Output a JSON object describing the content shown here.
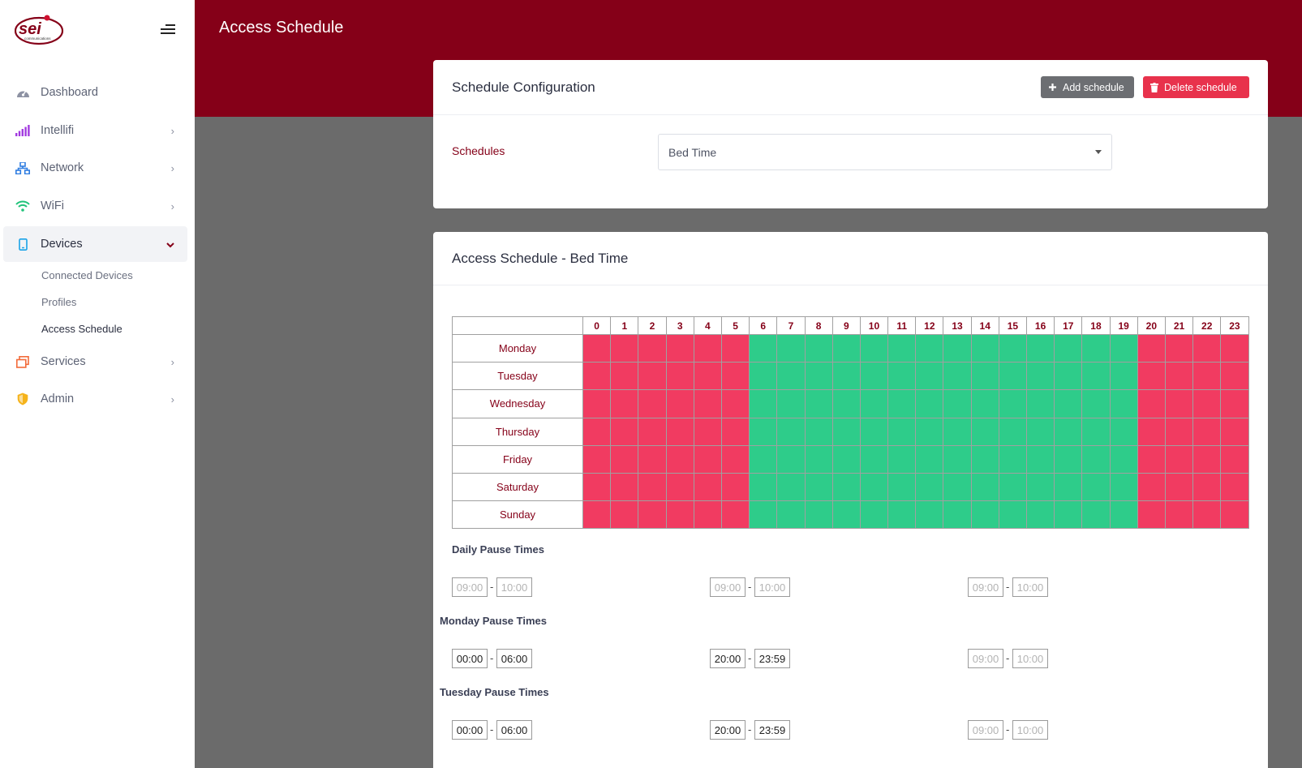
{
  "brand": {
    "logo_icon": "sei-communications-logo",
    "accent": "#850018"
  },
  "sidebar": {
    "items": [
      {
        "label": "Dashboard",
        "icon": "dashboard-gauge-icon"
      },
      {
        "label": "Intellifi",
        "icon": "signal-bars-icon"
      },
      {
        "label": "Network",
        "icon": "network-icon"
      },
      {
        "label": "WiFi",
        "icon": "wifi-icon"
      },
      {
        "label": "Devices",
        "icon": "mobile-device-icon"
      },
      {
        "label": "Services",
        "icon": "services-windows-icon"
      },
      {
        "label": "Admin",
        "icon": "shield-icon"
      }
    ],
    "devices_sub": [
      "Connected Devices",
      "Profiles",
      "Access Schedule"
    ]
  },
  "page": {
    "title": "Access Schedule"
  },
  "config": {
    "title": "Schedule Configuration",
    "add_label": "Add schedule",
    "delete_label": "Delete schedule",
    "schedules_label": "Schedules",
    "selected_schedule": "Bed Time"
  },
  "schedule": {
    "title": "Access Schedule - Bed Time",
    "hours": [
      "0",
      "1",
      "2",
      "3",
      "4",
      "5",
      "6",
      "7",
      "8",
      "9",
      "10",
      "11",
      "12",
      "13",
      "14",
      "15",
      "16",
      "17",
      "18",
      "19",
      "20",
      "21",
      "22",
      "23"
    ],
    "days": [
      "Monday",
      "Tuesday",
      "Wednesday",
      "Thursday",
      "Friday",
      "Saturday",
      "Sunday"
    ],
    "allowed_hours": [
      6,
      7,
      8,
      9,
      10,
      11,
      12,
      13,
      14,
      15,
      16,
      17,
      18,
      19
    ],
    "colors": {
      "blocked": "#f13b61",
      "allowed": "#2ecc8a"
    }
  },
  "pause_times": {
    "daily": {
      "label": "Daily Pause Times",
      "ranges": [
        {
          "start": "",
          "end": "",
          "start_ph": "09:00",
          "end_ph": "10:00"
        },
        {
          "start": "",
          "end": "",
          "start_ph": "09:00",
          "end_ph": "10:00"
        },
        {
          "start": "",
          "end": "",
          "start_ph": "09:00",
          "end_ph": "10:00"
        }
      ]
    },
    "monday": {
      "label": "Monday Pause Times",
      "ranges": [
        {
          "start": "00:00",
          "end": "06:00"
        },
        {
          "start": "20:00",
          "end": "23:59"
        },
        {
          "start": "",
          "end": "",
          "start_ph": "09:00",
          "end_ph": "10:00"
        }
      ]
    },
    "tuesday": {
      "label": "Tuesday Pause Times",
      "ranges": [
        {
          "start": "00:00",
          "end": "06:00"
        },
        {
          "start": "20:00",
          "end": "23:59"
        },
        {
          "start": "",
          "end": "",
          "start_ph": "09:00",
          "end_ph": "10:00"
        }
      ]
    },
    "separator": "-"
  }
}
